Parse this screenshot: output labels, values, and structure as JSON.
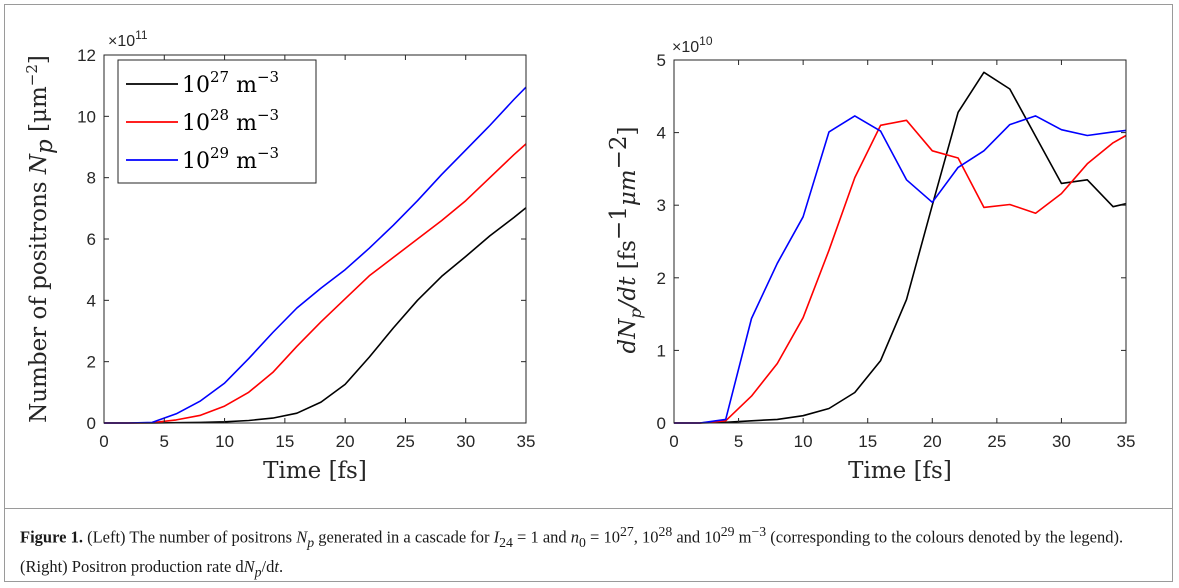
{
  "chart_data": [
    {
      "type": "line",
      "title": "",
      "xlabel": "Time [fs]",
      "ylabel": "Number of positrons N_p [μm^-2]",
      "ylabel_main": "Number of positrons ",
      "ylabel_sym": "N",
      "ylabel_sub": "p",
      "ylabel_unit": " [μm",
      "ylabel_exp": "−2",
      "ylabel_close": "]",
      "y_multiplier": "×10",
      "y_multiplier_exp": "11",
      "xlim": [
        0,
        35
      ],
      "ylim": [
        0,
        12
      ],
      "xticks": [
        "0",
        "5",
        "10",
        "15",
        "20",
        "25",
        "30",
        "35"
      ],
      "yticks": [
        "0",
        "2",
        "4",
        "6",
        "8",
        "10",
        "12"
      ],
      "grid": false,
      "legend_position": "top-left",
      "series": [
        {
          "name": "10^27 m^-3",
          "color": "#000000",
          "x": [
            0,
            2,
            4,
            6,
            8,
            10,
            12,
            14,
            16,
            18,
            20,
            22,
            24,
            26,
            28,
            30,
            32,
            34,
            35
          ],
          "values": [
            0,
            0,
            0,
            0.01,
            0.02,
            0.04,
            0.08,
            0.16,
            0.32,
            0.68,
            1.26,
            2.15,
            3.1,
            4.0,
            4.78,
            5.43,
            6.1,
            6.7,
            7.02
          ]
        },
        {
          "name": "10^28 m^-3",
          "color": "#ff0000",
          "x": [
            0,
            2,
            4,
            6,
            8,
            10,
            12,
            14,
            16,
            18,
            20,
            22,
            24,
            26,
            28,
            30,
            32,
            34,
            35
          ],
          "values": [
            0,
            0,
            0.01,
            0.1,
            0.25,
            0.55,
            1.0,
            1.65,
            2.5,
            3.3,
            4.05,
            4.8,
            5.4,
            6.0,
            6.6,
            7.25,
            8.0,
            8.75,
            9.1
          ]
        },
        {
          "name": "10^29 m^-3",
          "color": "#0000ff",
          "x": [
            0,
            2,
            4,
            6,
            8,
            10,
            12,
            14,
            16,
            18,
            20,
            22,
            24,
            26,
            28,
            30,
            32,
            34,
            35
          ],
          "values": [
            0,
            0,
            0.02,
            0.3,
            0.72,
            1.3,
            2.1,
            2.95,
            3.75,
            4.4,
            5.0,
            5.7,
            6.45,
            7.25,
            8.1,
            8.9,
            9.7,
            10.55,
            10.95
          ]
        }
      ],
      "legend": [
        {
          "base": "10",
          "exp": "27",
          "unit": " m",
          "unit_exp": "−3"
        },
        {
          "base": "10",
          "exp": "28",
          "unit": " m",
          "unit_exp": "−3"
        },
        {
          "base": "10",
          "exp": "29",
          "unit": " m",
          "unit_exp": "−3"
        }
      ]
    },
    {
      "type": "line",
      "title": "",
      "xlabel": "Time [fs]",
      "ylabel": "dN_p/dt [fs^-1 μm^-2]",
      "ylabel_sym": "dN",
      "ylabel_sub": "p",
      "ylabel_sym2": "/dt",
      "ylabel_unit": " [fs",
      "ylabel_exp": "−1",
      "ylabel_unit2": "μm",
      "ylabel_exp2": "−2",
      "ylabel_close": "]",
      "y_multiplier": "×10",
      "y_multiplier_exp": "10",
      "xlim": [
        0,
        35
      ],
      "ylim": [
        0,
        5
      ],
      "xticks": [
        "0",
        "5",
        "10",
        "15",
        "20",
        "25",
        "30",
        "35"
      ],
      "yticks": [
        "0",
        "1",
        "2",
        "3",
        "4",
        "5"
      ],
      "grid": false,
      "series": [
        {
          "name": "10^27 m^-3",
          "color": "#000000",
          "x": [
            0,
            2,
            4,
            6,
            8,
            10,
            12,
            14,
            16,
            18,
            20,
            22,
            24,
            26,
            28,
            30,
            32,
            34,
            35
          ],
          "values": [
            0,
            0,
            0.01,
            0.03,
            0.05,
            0.1,
            0.2,
            0.42,
            0.86,
            1.7,
            3.0,
            4.28,
            4.83,
            4.6,
            3.95,
            3.3,
            3.35,
            2.98,
            3.02
          ]
        },
        {
          "name": "10^28 m^-3",
          "color": "#ff0000",
          "x": [
            0,
            2,
            4,
            6,
            8,
            10,
            12,
            14,
            16,
            18,
            20,
            22,
            24,
            26,
            28,
            30,
            32,
            34,
            35
          ],
          "values": [
            0,
            0,
            0.03,
            0.37,
            0.82,
            1.45,
            2.38,
            3.38,
            4.1,
            4.17,
            3.75,
            3.65,
            2.97,
            3.01,
            2.89,
            3.16,
            3.57,
            3.86,
            3.96
          ]
        },
        {
          "name": "10^29 m^-3",
          "color": "#0000ff",
          "x": [
            0,
            2,
            4,
            6,
            8,
            10,
            12,
            14,
            16,
            18,
            20,
            22,
            24,
            26,
            28,
            30,
            32,
            34,
            35
          ],
          "values": [
            0,
            0,
            0.05,
            1.44,
            2.2,
            2.84,
            4.01,
            4.23,
            4.02,
            3.35,
            3.04,
            3.52,
            3.75,
            4.11,
            4.23,
            4.04,
            3.96,
            4.01,
            4.03
          ]
        }
      ]
    }
  ],
  "caption": {
    "label": "Figure 1.",
    "text_a": " (Left) The number of positrons ",
    "np_sym": "N",
    "np_sub": "p",
    "text_b": " generated in a cascade for ",
    "i_sym": "I",
    "i_sub": "24",
    "text_c": " = 1 and ",
    "n_sym": "n",
    "n_sub": "0",
    "text_d": " = 10",
    "e1": "27",
    "text_e": ", 10",
    "e2": "28",
    "text_f": " and 10",
    "e3": "29",
    "text_g": " m",
    "e4": "−3",
    "text_h": " (corresponding to the colours denoted by the legend). (Right) Positron production rate d",
    "np2_sym": "N",
    "np2_sub": "p",
    "text_i": "/d",
    "t_sym": "t",
    "text_j": "."
  }
}
